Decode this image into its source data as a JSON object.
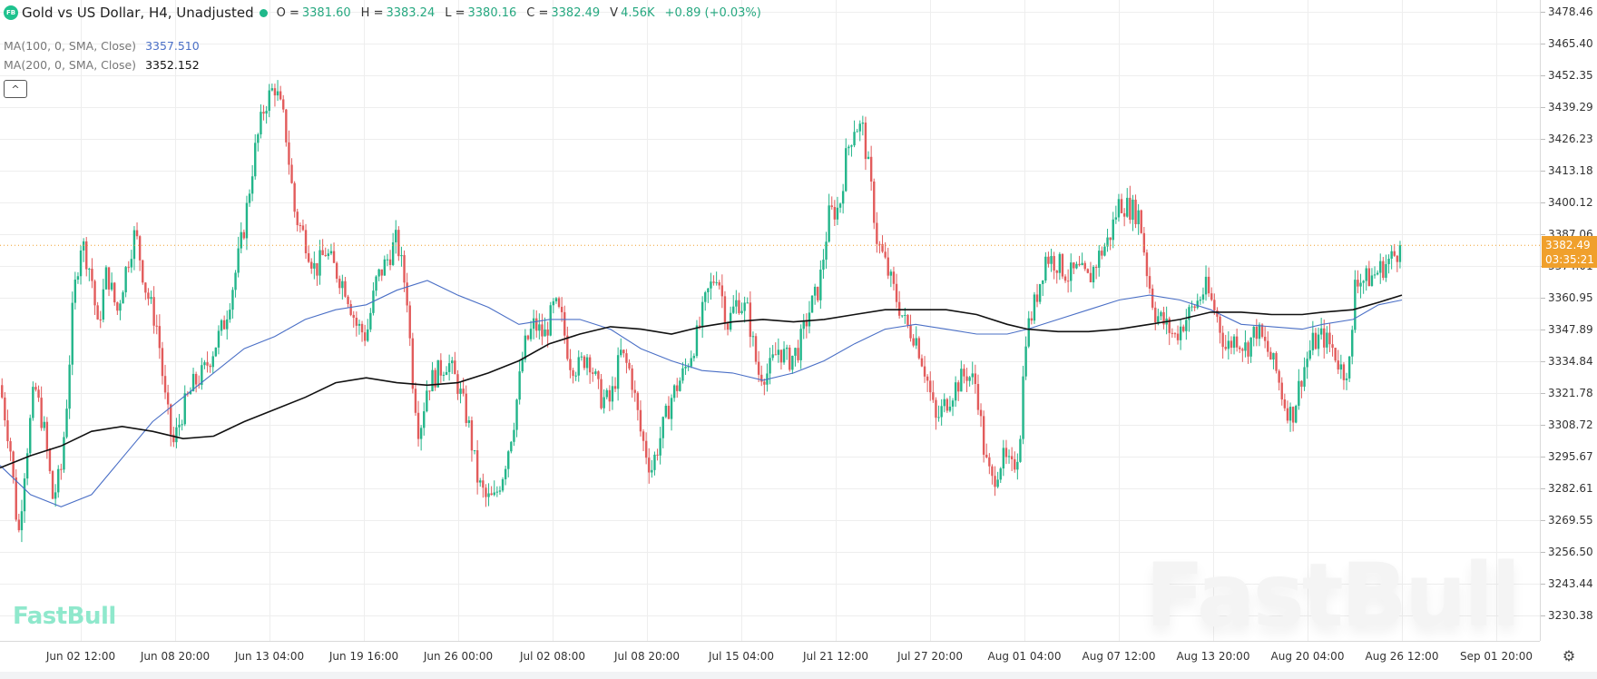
{
  "header": {
    "logo_text": "FB",
    "title": "Gold vs US Dollar, H4, Unadjusted",
    "status_color": "#1fb88a",
    "ohlc": [
      {
        "label": "O =",
        "value": "3381.60"
      },
      {
        "label": "H =",
        "value": "3383.24"
      },
      {
        "label": "L =",
        "value": "3380.16"
      },
      {
        "label": "C =",
        "value": "3382.49"
      },
      {
        "label": "V",
        "value": "4.56K"
      }
    ],
    "change": "+0.89 (+0.03%)"
  },
  "indicators": [
    {
      "label": "MA(100, 0, SMA, Close)",
      "value": "3357.510",
      "color": "#4a6fc6"
    },
    {
      "label": "MA(200, 0, SMA, Close)",
      "value": "3352.152",
      "color": "#111111"
    }
  ],
  "collapse_icon": "^",
  "price_tag": {
    "price": "3382.49",
    "countdown": "03:35:21",
    "color": "#f0a02c"
  },
  "watermark": {
    "small": "FastBull",
    "big": "FastBull"
  },
  "settings_icon": "⚙",
  "chart_data": {
    "type": "candlestick",
    "title": "Gold vs US Dollar, H4, Unadjusted",
    "xlabel": "",
    "ylabel": "",
    "yticks": [
      "3478.46",
      "3465.40",
      "3452.35",
      "3439.29",
      "3426.23",
      "3413.18",
      "3400.12",
      "3387.06",
      "3374.01",
      "3360.95",
      "3347.89",
      "3334.84",
      "3321.78",
      "3308.72",
      "3295.67",
      "3282.61",
      "3269.55",
      "3256.50",
      "3243.44",
      "3230.38"
    ],
    "xticks": [
      "Jun 02 12:00",
      "Jun 08 20:00",
      "Jun 13 04:00",
      "Jun 19 16:00",
      "Jun 26 00:00",
      "Jul 02 08:00",
      "Jul 08 20:00",
      "Jul 15 04:00",
      "Jul 21 12:00",
      "Jul 27 20:00",
      "Aug 01 04:00",
      "Aug 07 12:00",
      "Aug 13 20:00",
      "Aug 20 04:00",
      "Aug 26 12:00",
      "Sep 01 20:00"
    ],
    "ylim": [
      3220,
      3484
    ],
    "grid": true,
    "last_price": 3382.49,
    "up_color": "#22b58a",
    "down_color": "#e25b5b",
    "price_path": [
      [
        0,
        3325
      ],
      [
        10,
        3300
      ],
      [
        18,
        3262
      ],
      [
        24,
        3290
      ],
      [
        34,
        3325
      ],
      [
        44,
        3305
      ],
      [
        52,
        3278
      ],
      [
        60,
        3290
      ],
      [
        66,
        3320
      ],
      [
        72,
        3360
      ],
      [
        80,
        3385
      ],
      [
        90,
        3370
      ],
      [
        96,
        3348
      ],
      [
        105,
        3372
      ],
      [
        115,
        3355
      ],
      [
        125,
        3375
      ],
      [
        133,
        3388
      ],
      [
        143,
        3365
      ],
      [
        155,
        3348
      ],
      [
        162,
        3320
      ],
      [
        170,
        3300
      ],
      [
        180,
        3315
      ],
      [
        190,
        3325
      ],
      [
        200,
        3330
      ],
      [
        210,
        3340
      ],
      [
        220,
        3350
      ],
      [
        230,
        3368
      ],
      [
        240,
        3390
      ],
      [
        250,
        3420
      ],
      [
        260,
        3440
      ],
      [
        270,
        3448
      ],
      [
        280,
        3432
      ],
      [
        290,
        3395
      ],
      [
        300,
        3385
      ],
      [
        310,
        3372
      ],
      [
        320,
        3380
      ],
      [
        330,
        3372
      ],
      [
        340,
        3365
      ],
      [
        350,
        3350
      ],
      [
        360,
        3345
      ],
      [
        370,
        3368
      ],
      [
        380,
        3376
      ],
      [
        390,
        3385
      ],
      [
        400,
        3362
      ],
      [
        405,
        3330
      ],
      [
        412,
        3305
      ],
      [
        420,
        3325
      ],
      [
        430,
        3330
      ],
      [
        440,
        3335
      ],
      [
        450,
        3325
      ],
      [
        460,
        3310
      ],
      [
        470,
        3285
      ],
      [
        478,
        3278
      ],
      [
        486,
        3278
      ],
      [
        495,
        3290
      ],
      [
        505,
        3310
      ],
      [
        515,
        3340
      ],
      [
        525,
        3350
      ],
      [
        535,
        3345
      ],
      [
        545,
        3358
      ],
      [
        552,
        3352
      ],
      [
        560,
        3335
      ],
      [
        568,
        3332
      ],
      [
        578,
        3338
      ],
      [
        590,
        3320
      ],
      [
        600,
        3318
      ],
      [
        610,
        3338
      ],
      [
        620,
        3330
      ],
      [
        630,
        3305
      ],
      [
        640,
        3290
      ],
      [
        650,
        3305
      ],
      [
        660,
        3320
      ],
      [
        672,
        3330
      ],
      [
        685,
        3345
      ],
      [
        695,
        3362
      ],
      [
        705,
        3372
      ],
      [
        715,
        3350
      ],
      [
        725,
        3360
      ],
      [
        735,
        3355
      ],
      [
        745,
        3330
      ],
      [
        755,
        3330
      ],
      [
        765,
        3340
      ],
      [
        775,
        3335
      ],
      [
        785,
        3340
      ],
      [
        795,
        3355
      ],
      [
        805,
        3365
      ],
      [
        815,
        3395
      ],
      [
        825,
        3398
      ],
      [
        832,
        3420
      ],
      [
        840,
        3432
      ],
      [
        848,
        3430
      ],
      [
        855,
        3410
      ],
      [
        862,
        3385
      ],
      [
        870,
        3375
      ],
      [
        880,
        3362
      ],
      [
        890,
        3350
      ],
      [
        900,
        3345
      ],
      [
        910,
        3330
      ],
      [
        920,
        3310
      ],
      [
        930,
        3318
      ],
      [
        940,
        3325
      ],
      [
        950,
        3330
      ],
      [
        960,
        3325
      ],
      [
        968,
        3295
      ],
      [
        975,
        3285
      ],
      [
        985,
        3295
      ],
      [
        995,
        3290
      ],
      [
        1002,
        3300
      ],
      [
        1008,
        3345
      ],
      [
        1018,
        3360
      ],
      [
        1028,
        3378
      ],
      [
        1040,
        3375
      ],
      [
        1050,
        3370
      ],
      [
        1060,
        3372
      ],
      [
        1070,
        3368
      ],
      [
        1080,
        3378
      ],
      [
        1090,
        3385
      ],
      [
        1100,
        3400
      ],
      [
        1110,
        3398
      ],
      [
        1120,
        3395
      ],
      [
        1128,
        3370
      ],
      [
        1135,
        3355
      ],
      [
        1145,
        3350
      ],
      [
        1155,
        3345
      ],
      [
        1165,
        3352
      ],
      [
        1175,
        3358
      ],
      [
        1185,
        3365
      ],
      [
        1195,
        3355
      ],
      [
        1205,
        3340
      ],
      [
        1215,
        3345
      ],
      [
        1225,
        3340
      ],
      [
        1235,
        3348
      ],
      [
        1245,
        3340
      ],
      [
        1255,
        3330
      ],
      [
        1262,
        3318
      ],
      [
        1270,
        3312
      ],
      [
        1280,
        3330
      ],
      [
        1290,
        3342
      ],
      [
        1300,
        3345
      ],
      [
        1310,
        3340
      ],
      [
        1320,
        3330
      ],
      [
        1328,
        3335
      ],
      [
        1332,
        3370
      ],
      [
        1340,
        3368
      ],
      [
        1350,
        3370
      ],
      [
        1360,
        3374
      ],
      [
        1370,
        3378
      ],
      [
        1378,
        3382
      ]
    ],
    "moving_averages": [
      {
        "name": "MA100",
        "color": "#4a6fc6",
        "points": [
          [
            0,
            3292
          ],
          [
            30,
            3280
          ],
          [
            60,
            3275
          ],
          [
            90,
            3280
          ],
          [
            120,
            3295
          ],
          [
            150,
            3310
          ],
          [
            180,
            3320
          ],
          [
            210,
            3330
          ],
          [
            240,
            3340
          ],
          [
            270,
            3345
          ],
          [
            300,
            3352
          ],
          [
            330,
            3356
          ],
          [
            360,
            3358
          ],
          [
            390,
            3364
          ],
          [
            420,
            3368
          ],
          [
            450,
            3362
          ],
          [
            480,
            3357
          ],
          [
            510,
            3350
          ],
          [
            540,
            3352
          ],
          [
            570,
            3352
          ],
          [
            600,
            3348
          ],
          [
            630,
            3340
          ],
          [
            660,
            3335
          ],
          [
            690,
            3331
          ],
          [
            720,
            3330
          ],
          [
            750,
            3327
          ],
          [
            780,
            3330
          ],
          [
            810,
            3335
          ],
          [
            840,
            3342
          ],
          [
            870,
            3348
          ],
          [
            900,
            3350
          ],
          [
            930,
            3348
          ],
          [
            960,
            3346
          ],
          [
            990,
            3346
          ],
          [
            1010,
            3348
          ],
          [
            1040,
            3352
          ],
          [
            1070,
            3356
          ],
          [
            1100,
            3360
          ],
          [
            1130,
            3362
          ],
          [
            1160,
            3360
          ],
          [
            1190,
            3356
          ],
          [
            1220,
            3350
          ],
          [
            1250,
            3349
          ],
          [
            1280,
            3348
          ],
          [
            1300,
            3350
          ],
          [
            1330,
            3352
          ],
          [
            1355,
            3358
          ],
          [
            1378,
            3360
          ]
        ]
      },
      {
        "name": "MA200",
        "color": "#111111",
        "points": [
          [
            0,
            3291
          ],
          [
            30,
            3296
          ],
          [
            60,
            3300
          ],
          [
            90,
            3306
          ],
          [
            120,
            3308
          ],
          [
            150,
            3306
          ],
          [
            180,
            3303
          ],
          [
            210,
            3304
          ],
          [
            240,
            3310
          ],
          [
            270,
            3315
          ],
          [
            300,
            3320
          ],
          [
            330,
            3326
          ],
          [
            360,
            3328
          ],
          [
            390,
            3326
          ],
          [
            420,
            3325
          ],
          [
            450,
            3326
          ],
          [
            480,
            3330
          ],
          [
            510,
            3335
          ],
          [
            540,
            3342
          ],
          [
            570,
            3346
          ],
          [
            600,
            3349
          ],
          [
            630,
            3348
          ],
          [
            660,
            3346
          ],
          [
            690,
            3349
          ],
          [
            720,
            3351
          ],
          [
            750,
            3352
          ],
          [
            780,
            3351
          ],
          [
            810,
            3352
          ],
          [
            840,
            3354
          ],
          [
            870,
            3356
          ],
          [
            900,
            3356
          ],
          [
            930,
            3356
          ],
          [
            960,
            3354
          ],
          [
            990,
            3350
          ],
          [
            1010,
            3348
          ],
          [
            1040,
            3347
          ],
          [
            1070,
            3347
          ],
          [
            1100,
            3348
          ],
          [
            1130,
            3350
          ],
          [
            1160,
            3352
          ],
          [
            1190,
            3355
          ],
          [
            1220,
            3355
          ],
          [
            1250,
            3354
          ],
          [
            1280,
            3354
          ],
          [
            1300,
            3355
          ],
          [
            1330,
            3356
          ],
          [
            1355,
            3359
          ],
          [
            1378,
            3362
          ]
        ]
      }
    ]
  }
}
